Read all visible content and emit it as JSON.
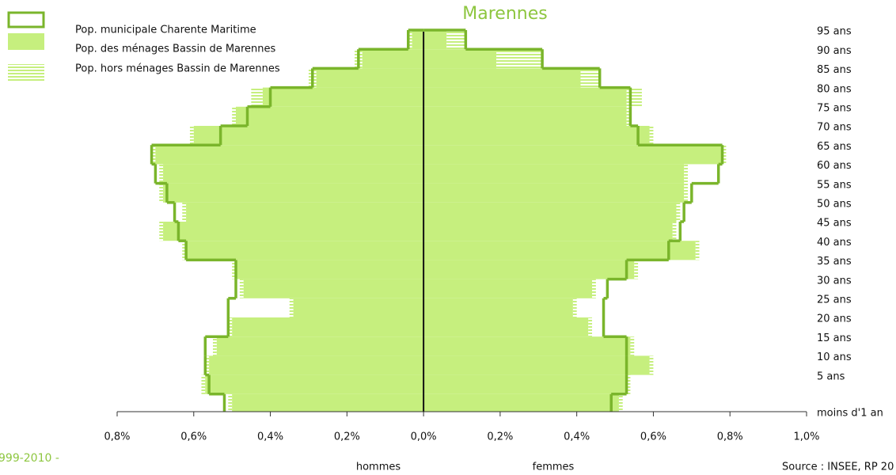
{
  "chart_data": {
    "type": "pyramid",
    "title": "Marennes",
    "categories": [
      "moins d'1 an",
      "5 ans",
      "10 ans",
      "15 ans",
      "20 ans",
      "25 ans",
      "30 ans",
      "35 ans",
      "40 ans",
      "45 ans",
      "50 ans",
      "55 ans",
      "60 ans",
      "65 ans",
      "70 ans",
      "75 ans",
      "80 ans",
      "85 ans",
      "90 ans",
      "95 ans"
    ],
    "series": [
      {
        "name": "Pop. municipale Charente Maritime",
        "color": "#7ab52b",
        "men": [
          0.52,
          0.56,
          0.57,
          0.57,
          0.51,
          0.51,
          0.49,
          0.49,
          0.62,
          0.64,
          0.65,
          0.67,
          0.7,
          0.71,
          0.53,
          0.46,
          0.4,
          0.29,
          0.17,
          0.04
        ],
        "women": [
          0.49,
          0.53,
          0.53,
          0.53,
          0.47,
          0.47,
          0.48,
          0.53,
          0.64,
          0.67,
          0.68,
          0.7,
          0.77,
          0.78,
          0.56,
          0.54,
          0.54,
          0.46,
          0.31,
          0.11
        ]
      },
      {
        "name": "Pop. des ménages Bassin de Marennes",
        "color": "#c6ef7e",
        "men": [
          0.5,
          0.57,
          0.56,
          0.54,
          0.5,
          0.34,
          0.47,
          0.49,
          0.62,
          0.68,
          0.62,
          0.68,
          0.68,
          0.7,
          0.6,
          0.49,
          0.42,
          0.28,
          0.16,
          0.03
        ],
        "women": [
          0.51,
          0.53,
          0.59,
          0.54,
          0.43,
          0.39,
          0.44,
          0.55,
          0.71,
          0.65,
          0.66,
          0.68,
          0.68,
          0.78,
          0.59,
          0.53,
          0.53,
          0.41,
          0.19,
          0.06
        ]
      },
      {
        "name": "Pop. hors ménages Bassin de Marennes",
        "color": "#c6ef7e",
        "men": [
          0.01,
          0.01,
          0.01,
          0.01,
          0.01,
          0.01,
          0.01,
          0.01,
          0.01,
          0.01,
          0.01,
          0.01,
          0.01,
          0.01,
          0.01,
          0.01,
          0.03,
          0.02,
          0.02,
          0.01
        ],
        "women": [
          0.01,
          0.01,
          0.01,
          0.01,
          0.01,
          0.01,
          0.01,
          0.01,
          0.01,
          0.01,
          0.01,
          0.01,
          0.01,
          0.01,
          0.01,
          0.01,
          0.04,
          0.05,
          0.12,
          0.05
        ]
      }
    ],
    "xlim": [
      -0.8,
      1.0
    ],
    "xticks": [
      {
        "value": -0.8,
        "label": "0,8%"
      },
      {
        "value": -0.6,
        "label": "0,6%"
      },
      {
        "value": -0.4,
        "label": "0,4%"
      },
      {
        "value": -0.2,
        "label": "0,2%"
      },
      {
        "value": 0,
        "label": "0,0%"
      },
      {
        "value": 0.2,
        "label": "0,2%"
      },
      {
        "value": 0.4,
        "label": "0,4%"
      },
      {
        "value": 0.6,
        "label": "0,6%"
      },
      {
        "value": 0.8,
        "label": "0,8%"
      },
      {
        "value": 1.0,
        "label": "1,0%"
      }
    ],
    "men_label": "hommes",
    "women_label": "femmes",
    "source": "Source : INSEE, RP 20",
    "period": "999-2010 -"
  }
}
